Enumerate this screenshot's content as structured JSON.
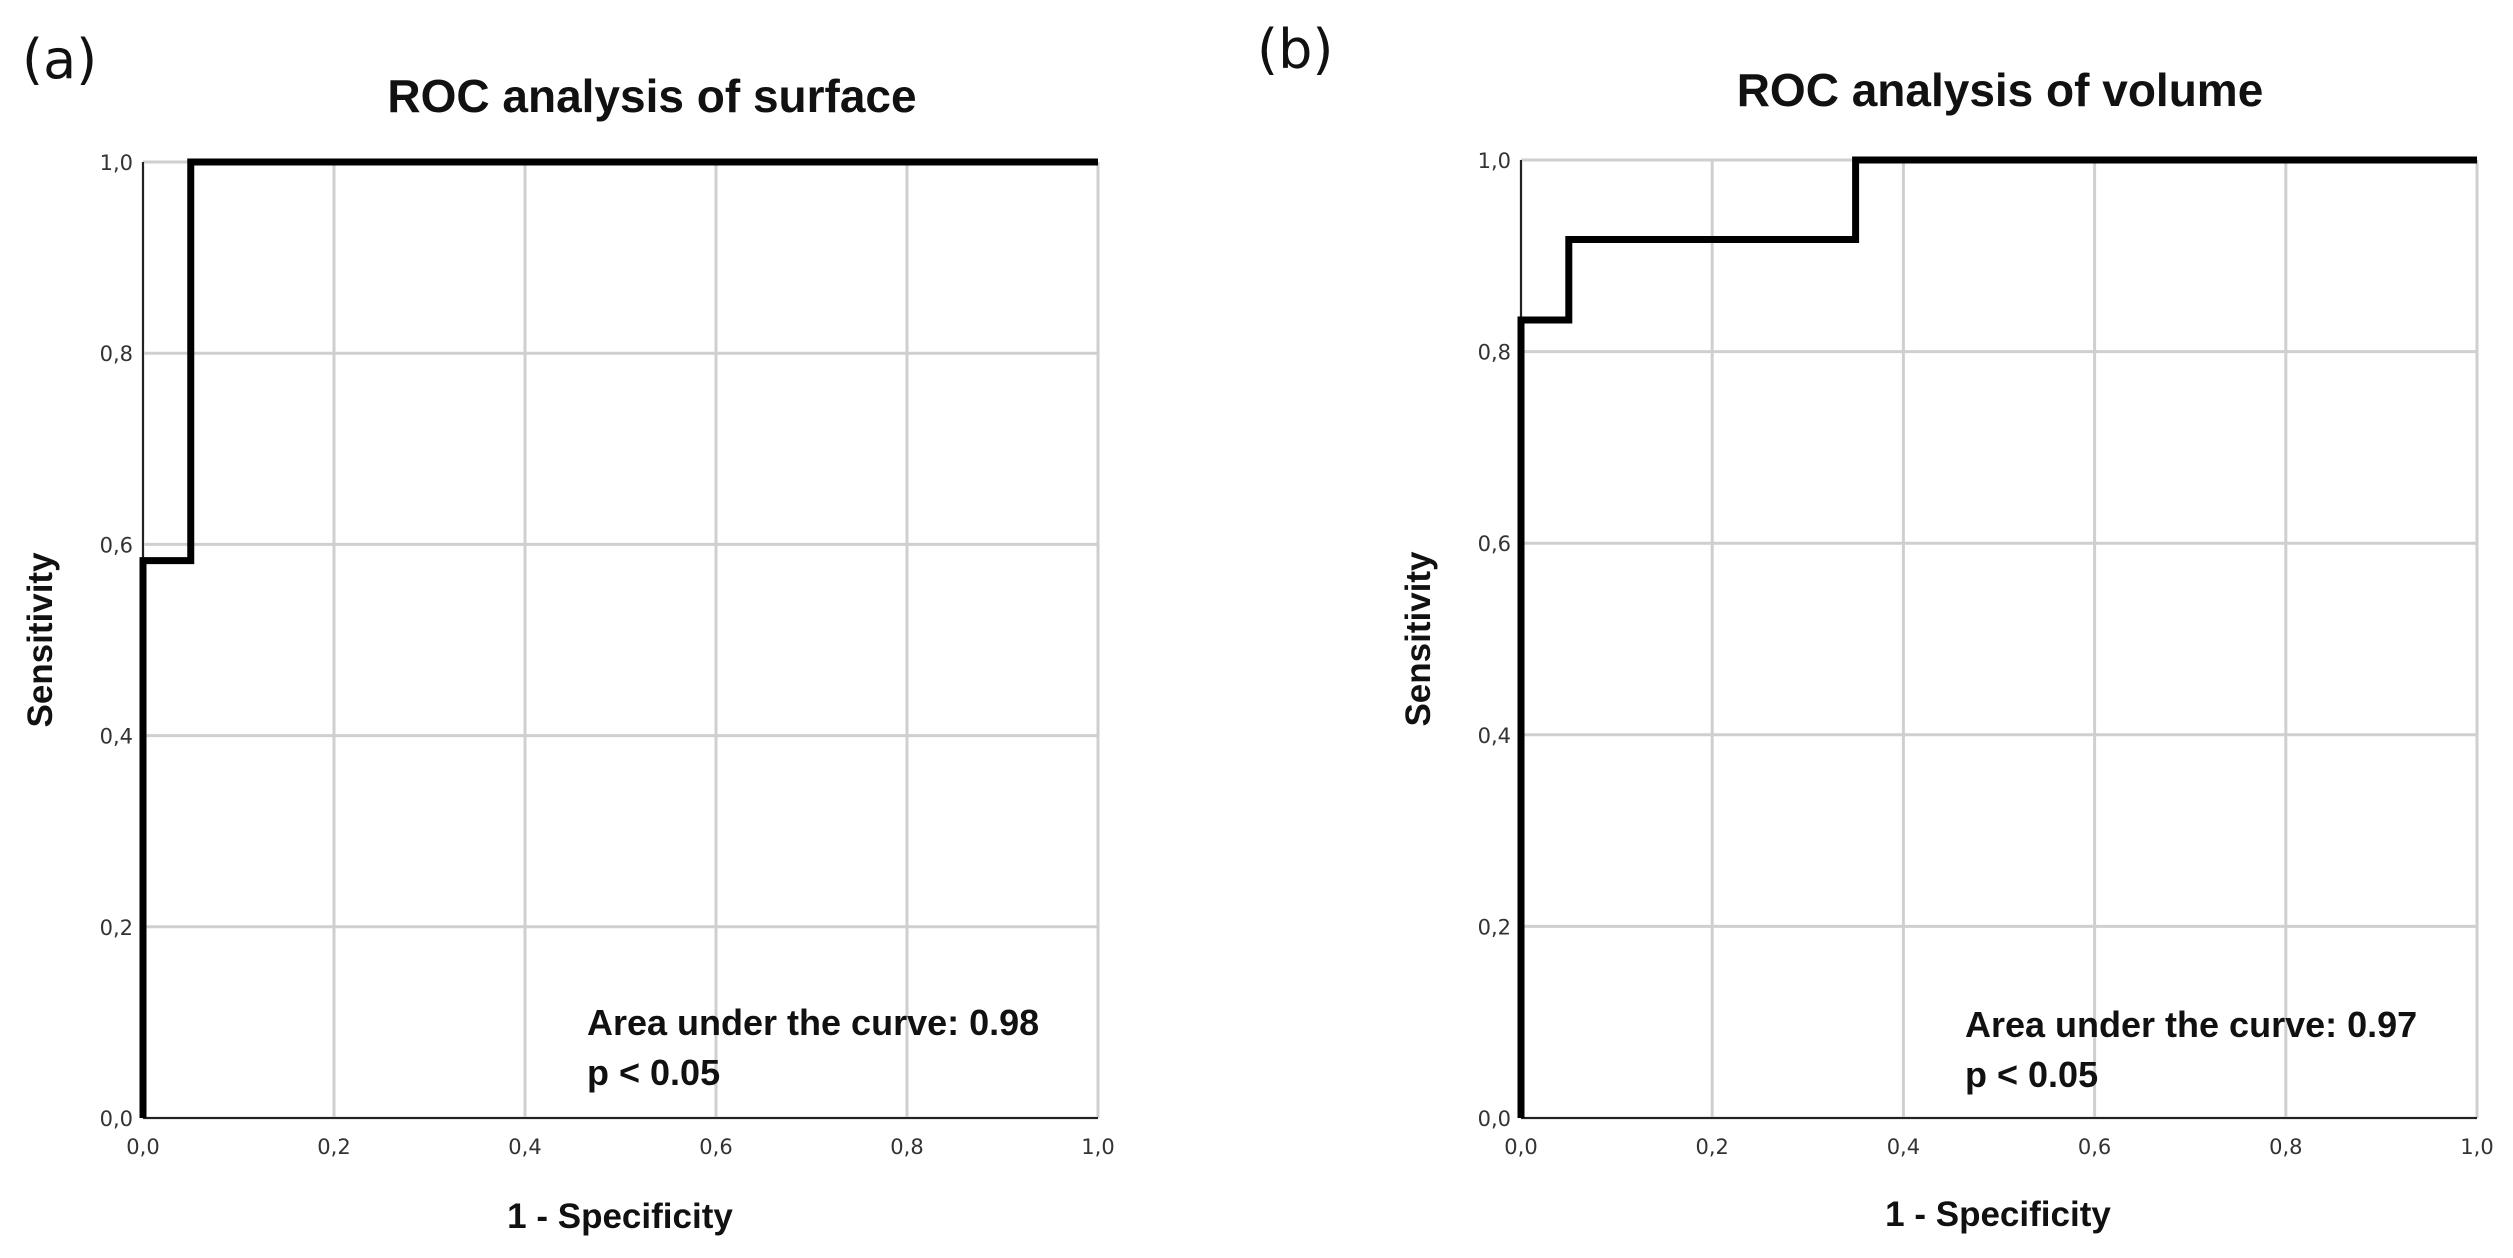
{
  "panels": [
    {
      "label": "(a)"
    },
    {
      "label": "(b)"
    }
  ],
  "chart_data": [
    {
      "type": "line",
      "title": "ROC analysis of surface",
      "xlabel": "1 - Specificity",
      "ylabel": "Sensitivity",
      "xlim": [
        0,
        1
      ],
      "ylim": [
        0,
        1
      ],
      "xticks": [
        "0,0",
        "0,2",
        "0,4",
        "0,6",
        "0,8",
        "1,0"
      ],
      "yticks": [
        "0,0",
        "0,2",
        "0,4",
        "0,6",
        "0,8",
        "1,0"
      ],
      "grid": true,
      "series": [
        {
          "name": "ROC curve",
          "x": [
            0,
            0,
            0.05,
            0.05,
            1.0
          ],
          "y": [
            0,
            0.583,
            0.583,
            1.0,
            1.0
          ]
        }
      ],
      "annotation": [
        "Area under the curve: 0.98",
        "p < 0.05"
      ]
    },
    {
      "type": "line",
      "title": "ROC analysis of volume",
      "xlabel": "1 - Specificity",
      "ylabel": "Sensitivity",
      "xlim": [
        0,
        1
      ],
      "ylim": [
        0,
        1
      ],
      "xticks": [
        "0,0",
        "0,2",
        "0,4",
        "0,6",
        "0,8",
        "1,0"
      ],
      "yticks": [
        "0,0",
        "0,2",
        "0,4",
        "0,6",
        "0,8",
        "1,0"
      ],
      "grid": true,
      "series": [
        {
          "name": "ROC curve",
          "x": [
            0,
            0,
            0.05,
            0.05,
            0.35,
            0.35,
            1.0
          ],
          "y": [
            0,
            0.833,
            0.833,
            0.917,
            0.917,
            1.0,
            1.0
          ]
        }
      ],
      "annotation": [
        "Area under the curve: 0.97",
        "p < 0.05"
      ]
    }
  ]
}
